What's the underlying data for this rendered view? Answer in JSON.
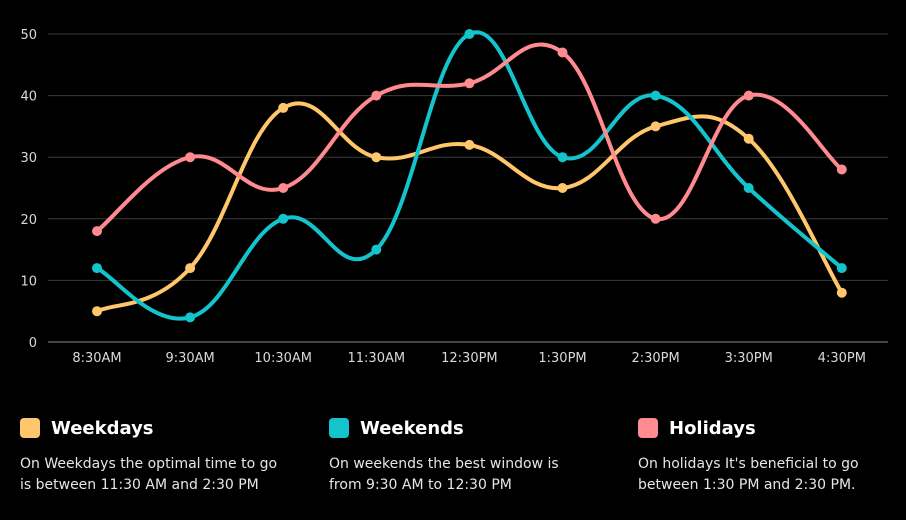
{
  "chart_data": {
    "type": "line",
    "title": "",
    "xlabel": "",
    "ylabel": "",
    "ylim": [
      0,
      50
    ],
    "yticks": [
      0,
      10,
      20,
      30,
      40,
      50
    ],
    "grid": true,
    "categories": [
      "8:30AM",
      "9:30AM",
      "10:30AM",
      "11:30AM",
      "12:30PM",
      "1:30PM",
      "2:30PM",
      "3:30PM",
      "4:30PM"
    ],
    "series": [
      {
        "name": "Weekdays",
        "color": "#ffc66b",
        "values": [
          5,
          12,
          38,
          30,
          32,
          25,
          35,
          33,
          8
        ]
      },
      {
        "name": "Weekends",
        "color": "#14c4cc",
        "values": [
          12,
          4,
          20,
          15,
          50,
          30,
          40,
          25,
          12
        ]
      },
      {
        "name": "Holidays",
        "color": "#ff8a8f",
        "values": [
          18,
          30,
          25,
          40,
          42,
          47,
          20,
          40,
          28
        ]
      }
    ]
  },
  "legend": [
    {
      "title": "Weekdays",
      "color": "#ffc66b",
      "text": "On Weekdays the optimal time to go\nis between 11:30 AM and 2:30 PM"
    },
    {
      "title": "Weekends",
      "color": "#14c4cc",
      "text": "On weekends the best window is\nfrom 9:30 AM to 12:30 PM"
    },
    {
      "title": "Holidays",
      "color": "#ff8a8f",
      "text": "On holidays It's  beneficial to go\nbetween 1:30 PM and 2:30 PM."
    }
  ]
}
